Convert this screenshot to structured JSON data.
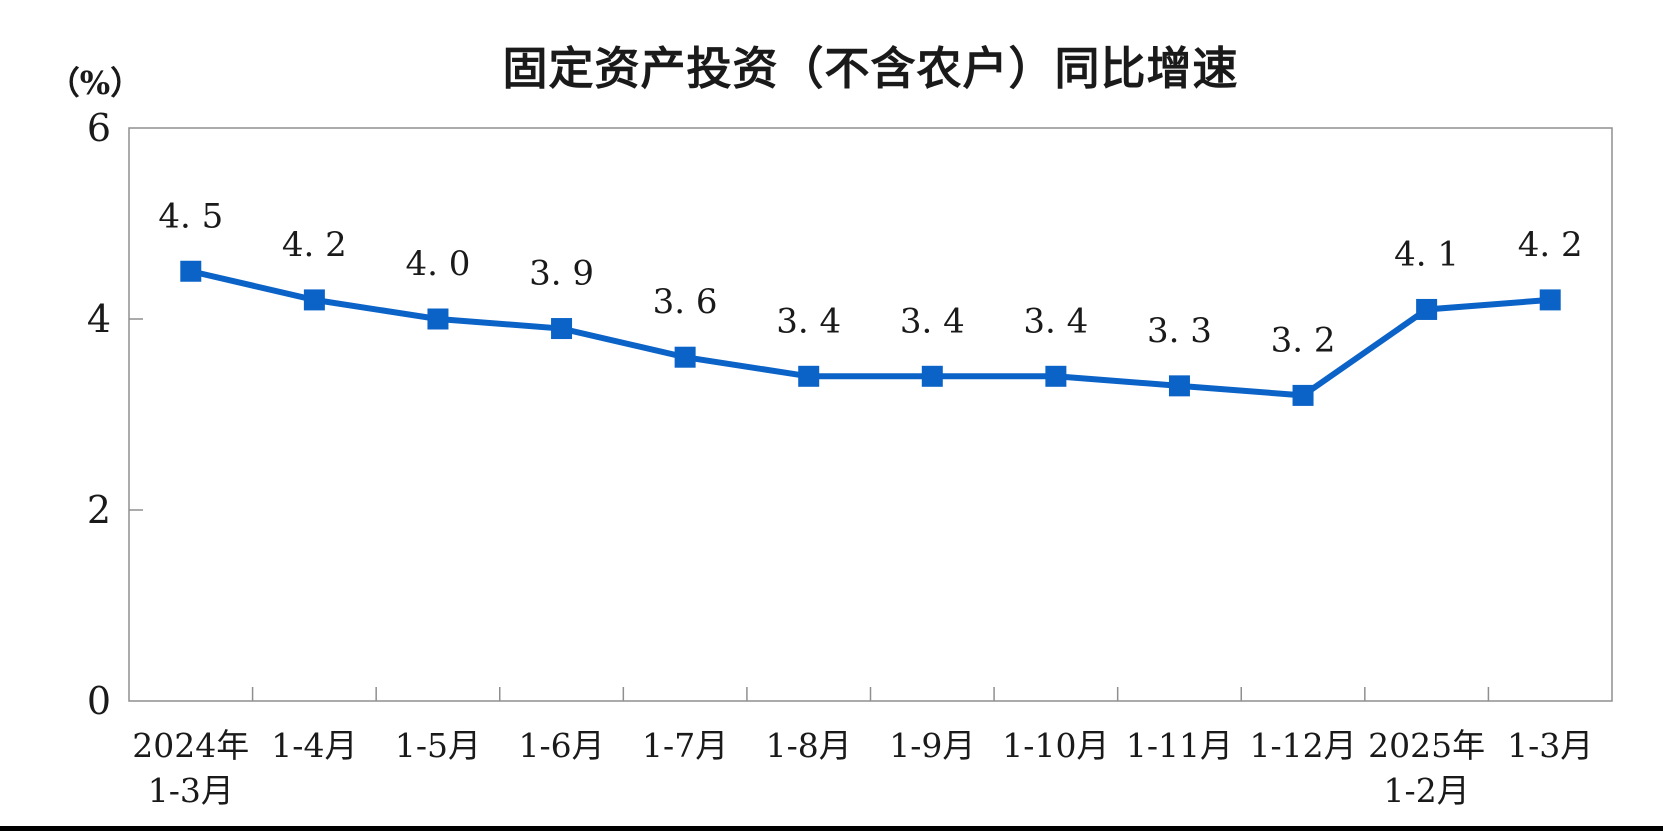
{
  "page": {
    "title": "固定资产投资（不含农户）同比增速",
    "y_axis_unit": "（%）"
  },
  "chart_data": {
    "type": "line",
    "title": "固定资产投资（不含农户）同比增速",
    "ylabel": "（%）",
    "xlabel": "",
    "ylim": [
      0,
      6
    ],
    "yticks": [
      0,
      2,
      4,
      6
    ],
    "grid": false,
    "legend_position": "none",
    "categories": [
      [
        "2024年",
        "1-3月"
      ],
      [
        "1-4月"
      ],
      [
        "1-5月"
      ],
      [
        "1-6月"
      ],
      [
        "1-7月"
      ],
      [
        "1-8月"
      ],
      [
        "1-9月"
      ],
      [
        "1-10月"
      ],
      [
        "1-11月"
      ],
      [
        "1-12月"
      ],
      [
        "2025年",
        "1-2月"
      ],
      [
        "1-3月"
      ]
    ],
    "values": [
      4.5,
      4.2,
      4.0,
      3.9,
      3.6,
      3.4,
      3.4,
      3.4,
      3.3,
      3.2,
      4.1,
      4.2
    ],
    "point_labels": [
      "4. 5",
      "4. 2",
      "4. 0",
      "3. 9",
      "3. 6",
      "3. 4",
      "3. 4",
      "3. 4",
      "3. 3",
      "3. 2",
      "4. 1",
      "4. 2"
    ],
    "marker_shape": "square",
    "line_color": "#0b63c8",
    "axis_color": "#8f8f8f",
    "text_color": "#1a1a1a"
  }
}
